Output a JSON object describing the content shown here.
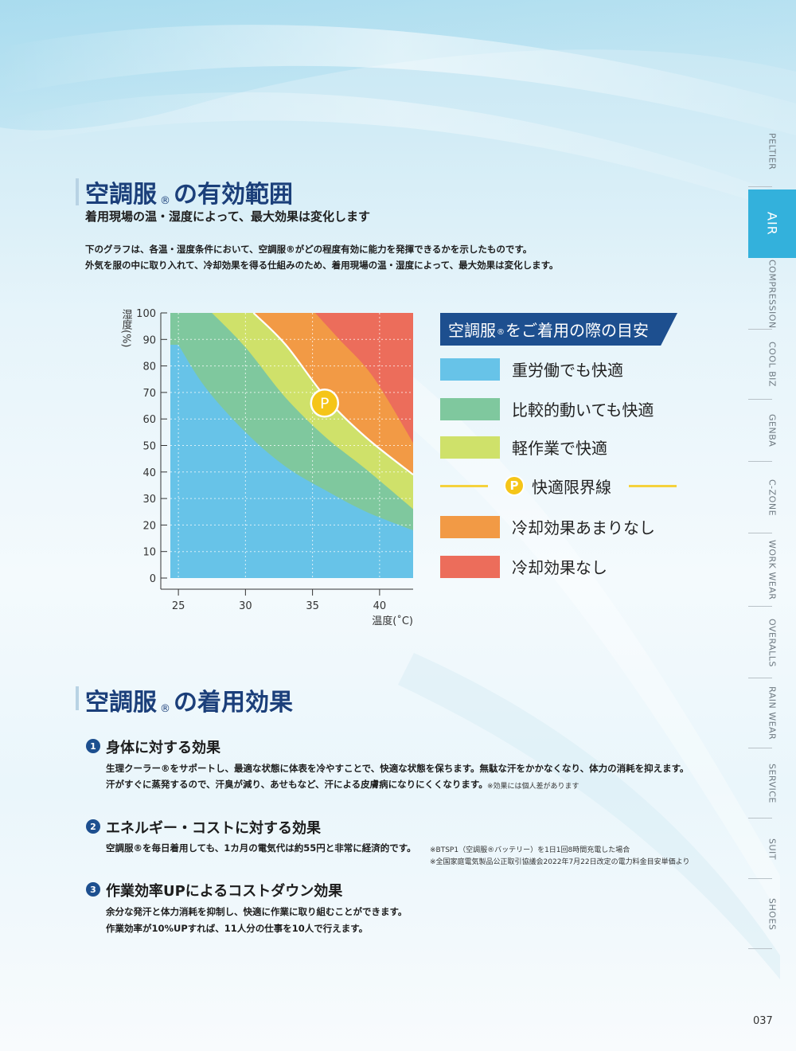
{
  "side_index": {
    "items": [
      {
        "label": "PELTIER",
        "active": false
      },
      {
        "label": "AIR",
        "active": true
      },
      {
        "label": "COMPRESSION",
        "active": false
      },
      {
        "label": "COOL BIZ",
        "active": false
      },
      {
        "label": "GENBA",
        "active": false
      },
      {
        "label": "C-ZONE",
        "active": false
      },
      {
        "label": "WORK WEAR",
        "active": false
      },
      {
        "label": "OVERALLS",
        "active": false
      },
      {
        "label": "RAIN WEAR",
        "active": false
      },
      {
        "label": "SERVICE",
        "active": false
      },
      {
        "label": "SUIT",
        "active": false
      },
      {
        "label": "SHOES",
        "active": false
      }
    ],
    "active_color": "#33b1dc"
  },
  "section1": {
    "title_a": "空調服",
    "mark": "®",
    "title_b": "の有効範囲",
    "subtitle": "着用現場の温・湿度によって、最大効果は変化します",
    "desc_line1": "下のグラフは、各温・湿度条件において、空調服®がどの程度有効に能力を発揮できるかを示したものです。",
    "desc_line2": "外気を服の中に取り入れて、冷却効果を得る仕組みのため、着用現場の温・湿度によって、最大効果は変化します。"
  },
  "chart_data": {
    "type": "area",
    "title": "",
    "xlabel": "温度(˚C)",
    "ylabel": "湿度(%)",
    "x_ticks": [
      25,
      30,
      35,
      40
    ],
    "y_ticks": [
      0,
      10,
      20,
      30,
      40,
      50,
      60,
      70,
      80,
      90,
      100
    ],
    "xlim": [
      24.4,
      42.5
    ],
    "ylim": [
      0,
      100
    ],
    "grid": true,
    "boundaries": [
      {
        "name": "重労働でも快適 / 比較的動いても快適",
        "points": [
          [
            25,
            88
          ],
          [
            27,
            72
          ],
          [
            30,
            55
          ],
          [
            33,
            42
          ],
          [
            36,
            33
          ],
          [
            39,
            25
          ],
          [
            42.5,
            18
          ]
        ]
      },
      {
        "name": "比較的動いても快適 / 軽作業で快適",
        "points": [
          [
            27.5,
            100
          ],
          [
            30,
            87
          ],
          [
            33,
            68
          ],
          [
            36,
            53
          ],
          [
            39,
            41
          ],
          [
            42.5,
            26
          ]
        ]
      },
      {
        "name": "軽作業で快適 / 冷却効果あまりなし",
        "points": [
          [
            30.6,
            100
          ],
          [
            33,
            88
          ],
          [
            36,
            68
          ],
          [
            39,
            53
          ],
          [
            42.5,
            39
          ]
        ]
      },
      {
        "name": "冷却効果あまりなし / 冷却効果なし",
        "points": [
          [
            35.2,
            100
          ],
          [
            37,
            90
          ],
          [
            39.5,
            76
          ],
          [
            42.5,
            51
          ]
        ]
      }
    ],
    "marker": {
      "label": "P",
      "x": 35.9,
      "y": 66
    },
    "colors": {
      "heavy_ok": "#67c3e8",
      "moderate_ok": "#7fc89e",
      "light_ok": "#cfe16a",
      "limit_line": "#ffffff",
      "slightly_effective": "#f29a45",
      "not_effective": "#ec6d5b"
    }
  },
  "legend": {
    "banner_a": "空調服",
    "banner_mark": "®",
    "banner_b": "をご着用の際の目安",
    "items": [
      {
        "label": "重労働でも快適",
        "color": "#67c3e8"
      },
      {
        "label": "比較的動いても快適",
        "color": "#7fc89e"
      },
      {
        "label": "軽作業で快適",
        "color": "#cfe16a"
      },
      {
        "label": "快適限界線",
        "color": "#f5d23c",
        "badge": "P"
      },
      {
        "label": "冷却効果あまりなし",
        "color": "#f29a45"
      },
      {
        "label": "冷却効果なし",
        "color": "#ec6d5b"
      }
    ]
  },
  "section2": {
    "title_a": "空調服",
    "mark": "®",
    "title_b": "の着用効果",
    "items": [
      {
        "num": "1",
        "heading": "身体に対する効果",
        "line1": "生理クーラー®をサポートし、最適な状態に体表を冷やすことで、快適な状態を保ちます。無駄な汗をかかなくなり、体力の消耗を抑えます。",
        "line2": "汗がすぐに蒸発するので、汗臭が減り、あせもなど、汗による皮膚病になりにくくなります。",
        "note1": "※効果には個人差があります"
      },
      {
        "num": "2",
        "heading": "エネルギー・コストに対する効果",
        "line1": "空調服®を毎日着用しても、1カ月の電気代は約55円と非常に経済的です。",
        "note1": "※BTSP1（空調服®バッテリー）を1日1回8時間充電した場合",
        "note2": "※全国家庭電気製品公正取引協議会2022年7月22日改定の電力料金目安単価より"
      },
      {
        "num": "3",
        "heading": "作業効率UPによるコストダウン効果",
        "line1": "余分な発汗と体力消耗を抑制し、快適に作業に取り組むことができます。",
        "line2": "作業効率が10%UPすれば、11人分の仕事を10人で行えます。"
      }
    ]
  },
  "page_number": "037"
}
